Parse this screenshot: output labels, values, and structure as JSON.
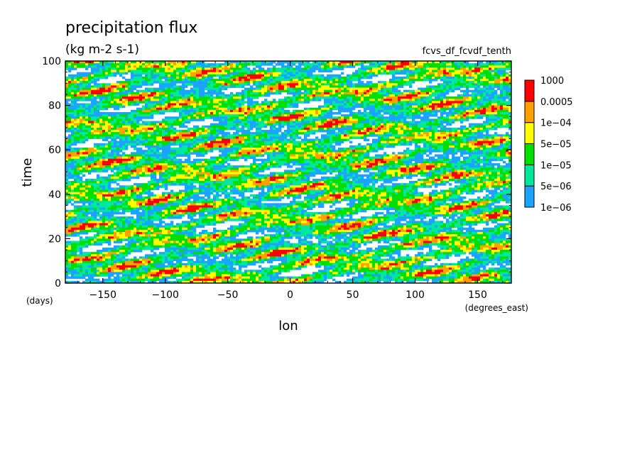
{
  "chart_data": {
    "type": "heatmap",
    "title": "precipitation flux",
    "subtitle": "(kg m-2 s-1)",
    "annotation": "fcvs_df_fcvdf_tenth",
    "xlabel": "lon",
    "ylabel": "time",
    "x_units": "(degrees_east)",
    "y_units": "(days)",
    "xlim": [
      -180,
      177
    ],
    "ylim": [
      0,
      100
    ],
    "x_ticks": [
      -150,
      -100,
      -50,
      0,
      50,
      100,
      150
    ],
    "y_ticks": [
      0,
      20,
      40,
      60,
      80,
      100
    ],
    "color_levels": [
      "1e-06",
      "5e-06",
      "1e-05",
      "5e-05",
      "1e-04",
      "0.0005",
      "1000"
    ],
    "color_bins": [
      {
        "from": "1e-06",
        "to": "5e-06",
        "color": "#1aa3ff"
      },
      {
        "from": "5e-06",
        "to": "1e-05",
        "color": "#00e89c"
      },
      {
        "from": "1e-05",
        "to": "5e-05",
        "color": "#00e000"
      },
      {
        "from": "5e-05",
        "to": "1e-04",
        "color": "#ffff00"
      },
      {
        "from": "1e-04",
        "to": "0.0005",
        "color": "#ffa000"
      },
      {
        "from": "0.0005",
        "to": "1000",
        "color": "#ff0000"
      }
    ],
    "below_min_color": "#ffffff",
    "legend_position": "right",
    "grid": false
  }
}
